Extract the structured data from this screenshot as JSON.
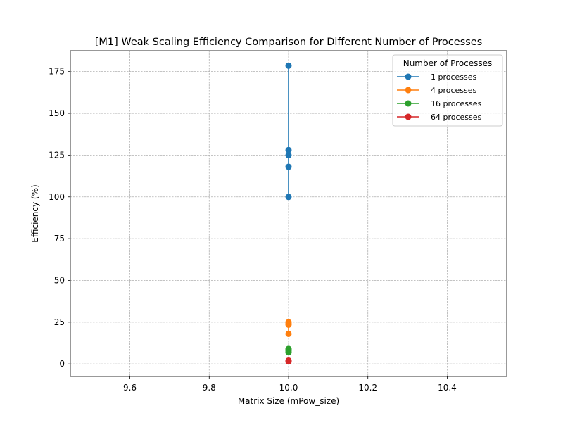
{
  "chart_data": {
    "type": "line",
    "title": "[M1] Weak Scaling Efficiency Comparison for Different Number of Processes",
    "xlabel": "Matrix Size (mPow_size)",
    "ylabel": "Efficiency (%)",
    "xlim": [
      9.45,
      10.55
    ],
    "ylim": [
      -7.5,
      187.5
    ],
    "xticks": [
      9.6,
      9.8,
      10.0,
      10.2,
      10.4
    ],
    "xtick_labels": [
      "9.6",
      "9.8",
      "10.0",
      "10.2",
      "10.4"
    ],
    "yticks": [
      0,
      25,
      50,
      75,
      100,
      125,
      150,
      175
    ],
    "ytick_labels": [
      "0",
      "25",
      "50",
      "75",
      "100",
      "125",
      "150",
      "175"
    ],
    "grid": true,
    "legend": {
      "title": "Number of Processes",
      "placement": "upper-right"
    },
    "series": [
      {
        "name": "1 processes",
        "color": "#1f77b4",
        "x": [
          10,
          10,
          10,
          10,
          10
        ],
        "y": [
          100,
          178.5,
          128,
          125,
          118
        ]
      },
      {
        "name": "4 processes",
        "color": "#ff7f0e",
        "x": [
          10,
          10,
          10,
          10
        ],
        "y": [
          18,
          25,
          24,
          23.5
        ]
      },
      {
        "name": "16 processes",
        "color": "#2ca02c",
        "x": [
          10,
          10,
          10,
          10
        ],
        "y": [
          7,
          9,
          8.5,
          8
        ]
      },
      {
        "name": "64 processes",
        "color": "#d62728",
        "x": [
          10,
          10,
          10,
          10
        ],
        "y": [
          1.5,
          2,
          1.8,
          1.6
        ]
      }
    ]
  }
}
